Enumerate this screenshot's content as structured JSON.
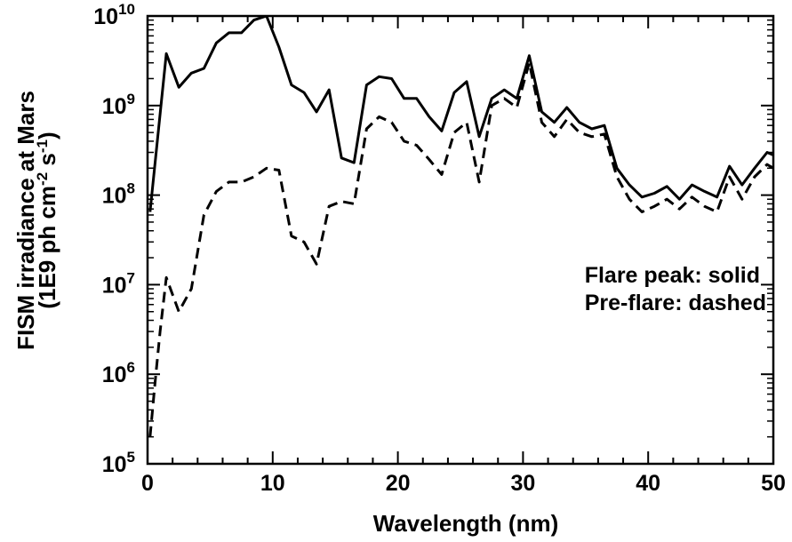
{
  "chart_data": {
    "type": "line",
    "title": "",
    "xlabel": "Wavelength (nm)",
    "ylabel": {
      "line1": "FISM irradiance at Mars",
      "line2": "(1E9 ph cm",
      "line2_sup1": "-2",
      "line2_mid": " s",
      "line2_sup2": "-1",
      "line2_end": ")"
    },
    "xlim": [
      0,
      50
    ],
    "ylim": [
      100000,
      10000000000
    ],
    "yscale": "log",
    "x_ticks": [
      "0",
      "10",
      "20",
      "30",
      "40",
      "50"
    ],
    "y_ticks": [
      {
        "base": "10",
        "exp": "5"
      },
      {
        "base": "10",
        "exp": "6"
      },
      {
        "base": "10",
        "exp": "7"
      },
      {
        "base": "10",
        "exp": "8"
      },
      {
        "base": "10",
        "exp": "9"
      },
      {
        "base": "10",
        "exp": "10"
      }
    ],
    "legend_position": "right",
    "annotations": [
      "Flare peak: solid",
      "Pre-flare: dashed"
    ],
    "series": [
      {
        "style": "solid",
        "x": [
          0.2,
          1.5,
          2.5,
          3.5,
          4.5,
          5.5,
          6.5,
          7.5,
          8.5,
          9.5,
          10.5,
          11.5,
          12.5,
          13.5,
          14.5,
          15.5,
          16.5,
          17.5,
          18.5,
          19.5,
          20.5,
          21.5,
          22.5,
          23.5,
          24.5,
          25.5,
          26.5,
          27.5,
          28.5,
          29.5,
          30.5,
          31.5,
          32.5,
          33.5,
          34.5,
          35.5,
          36.5,
          37.5,
          38.5,
          39.5,
          40.5,
          41.5,
          42.5,
          43.5,
          44.5,
          45.5,
          46.5,
          47.5,
          48.5,
          49.5,
          50.0
        ],
        "y": [
          65000000.0,
          3800000000.0,
          1600000000.0,
          2300000000.0,
          2600000000.0,
          5000000000.0,
          6500000000.0,
          6500000000.0,
          9000000000.0,
          10000000000.0,
          4500000000.0,
          1700000000.0,
          1400000000.0,
          850000000.0,
          1500000000.0,
          260000000.0,
          230000000.0,
          1700000000.0,
          2100000000.0,
          2000000000.0,
          1200000000.0,
          1200000000.0,
          750000000.0,
          520000000.0,
          1400000000.0,
          1850000000.0,
          450000000.0,
          1200000000.0,
          1500000000.0,
          1200000000.0,
          3600000000.0,
          850000000.0,
          650000000.0,
          950000000.0,
          650000000.0,
          550000000.0,
          600000000.0,
          200000000.0,
          130000000.0,
          95000000.0,
          105000000.0,
          125000000.0,
          90000000.0,
          130000000.0,
          110000000.0,
          95000000.0,
          210000000.0,
          130000000.0,
          200000000.0,
          300000000.0,
          280000000.0
        ]
      },
      {
        "style": "dashed",
        "x": [
          0.2,
          0.6,
          1.0,
          1.5,
          2.5,
          3.5,
          4.5,
          5.5,
          6.5,
          7.5,
          8.5,
          9.5,
          10.5,
          11.5,
          12.5,
          13.5,
          14.5,
          15.5,
          16.5,
          17.5,
          18.5,
          19.5,
          20.5,
          21.5,
          22.5,
          23.5,
          24.5,
          25.5,
          26.5,
          27.5,
          28.5,
          29.5,
          30.5,
          31.5,
          32.5,
          33.5,
          34.5,
          35.5,
          36.5,
          37.5,
          38.5,
          39.5,
          40.5,
          41.5,
          42.5,
          43.5,
          44.5,
          45.5,
          46.5,
          47.5,
          48.5,
          49.5,
          50.0
        ],
        "y": [
          200000.0,
          800000.0,
          3000000.0,
          12000000.0,
          5000000.0,
          9000000.0,
          60000000.0,
          110000000.0,
          140000000.0,
          140000000.0,
          160000000.0,
          200000000.0,
          190000000.0,
          35000000.0,
          30000000.0,
          17000000.0,
          75000000.0,
          85000000.0,
          80000000.0,
          550000000.0,
          750000000.0,
          650000000.0,
          400000000.0,
          360000000.0,
          250000000.0,
          170000000.0,
          500000000.0,
          650000000.0,
          140000000.0,
          1000000000.0,
          1200000000.0,
          950000000.0,
          3000000000.0,
          650000000.0,
          450000000.0,
          700000000.0,
          500000000.0,
          450000000.0,
          480000000.0,
          160000000.0,
          90000000.0,
          65000000.0,
          75000000.0,
          90000000.0,
          70000000.0,
          95000000.0,
          75000000.0,
          65000000.0,
          160000000.0,
          90000000.0,
          160000000.0,
          220000000.0,
          200000000.0
        ]
      }
    ]
  }
}
